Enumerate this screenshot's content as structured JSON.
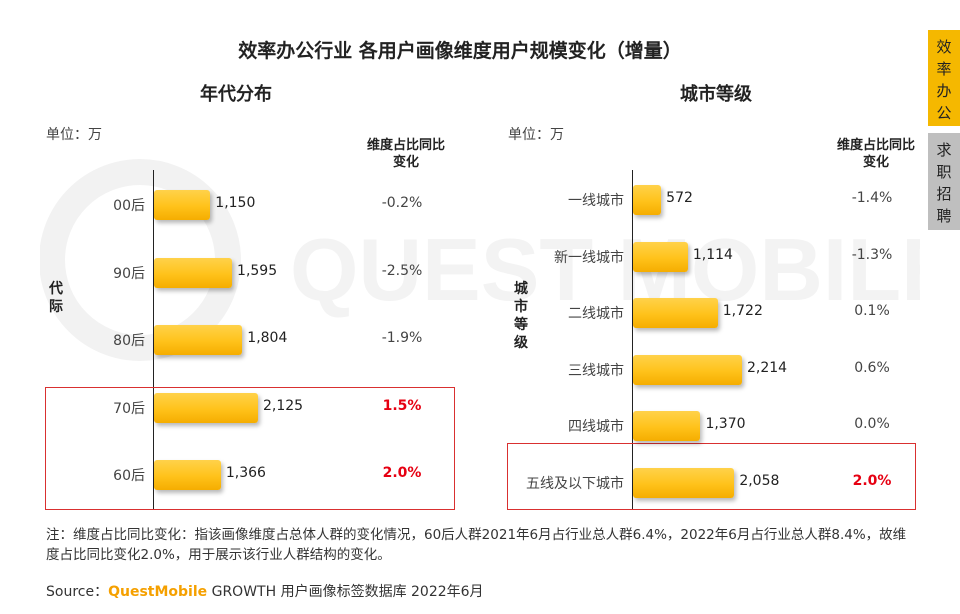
{
  "title": "效率办公行业 各用户画像维度用户规模变化（增量）",
  "side_tabs": [
    "效率办公",
    "求职招聘"
  ],
  "watermark": "QUEST MOBILE",
  "note": "注：维度占比同比变化：指该画像维度占总体人群的变化情况，60后人群2021年6月占行业总人群6.4%，2022年6月占行业总人群8.4%，故维度占比同比变化2.0%，用于展示该行业人群结构的变化。",
  "source": {
    "prefix": "Source：",
    "brand": "QuestMobile",
    "rest": " GROWTH 用户画像标签数据库 2022年6月"
  },
  "colors": {
    "bar": "#ffc21a",
    "highlight": "#e60012",
    "tab_active": "#f5b800",
    "tab_inactive": "#bfbfbf"
  },
  "chart_data": [
    {
      "type": "bar",
      "orientation": "horizontal",
      "title": "年代分布",
      "unit_label": "单位：万",
      "ylabel": "代际",
      "delta_header": "维度占比同比变化",
      "categories": [
        "00后",
        "90后",
        "80后",
        "70后",
        "60后"
      ],
      "values": [
        1150,
        1595,
        1804,
        2125,
        1366
      ],
      "value_labels": [
        "1,150",
        "1,595",
        "1,804",
        "2,125",
        "1,366"
      ],
      "delta": [
        "-0.2%",
        "-2.5%",
        "-1.9%",
        "1.5%",
        "2.0%"
      ],
      "highlighted": [
        "70后",
        "60后"
      ]
    },
    {
      "type": "bar",
      "orientation": "horizontal",
      "title": "城市等级",
      "unit_label": "单位：万",
      "ylabel": "城市等级",
      "delta_header": "维度占比同比变化",
      "categories": [
        "一线城市",
        "新一线城市",
        "二线城市",
        "三线城市",
        "四线城市",
        "五线及以下城市"
      ],
      "values": [
        572,
        1114,
        1722,
        2214,
        1370,
        2058
      ],
      "value_labels": [
        "572",
        "1,114",
        "1,722",
        "2,214",
        "1,370",
        "2,058"
      ],
      "delta": [
        "-1.4%",
        "-1.3%",
        "0.1%",
        "0.6%",
        "0.0%",
        "2.0%"
      ],
      "highlighted": [
        "五线及以下城市"
      ]
    }
  ]
}
